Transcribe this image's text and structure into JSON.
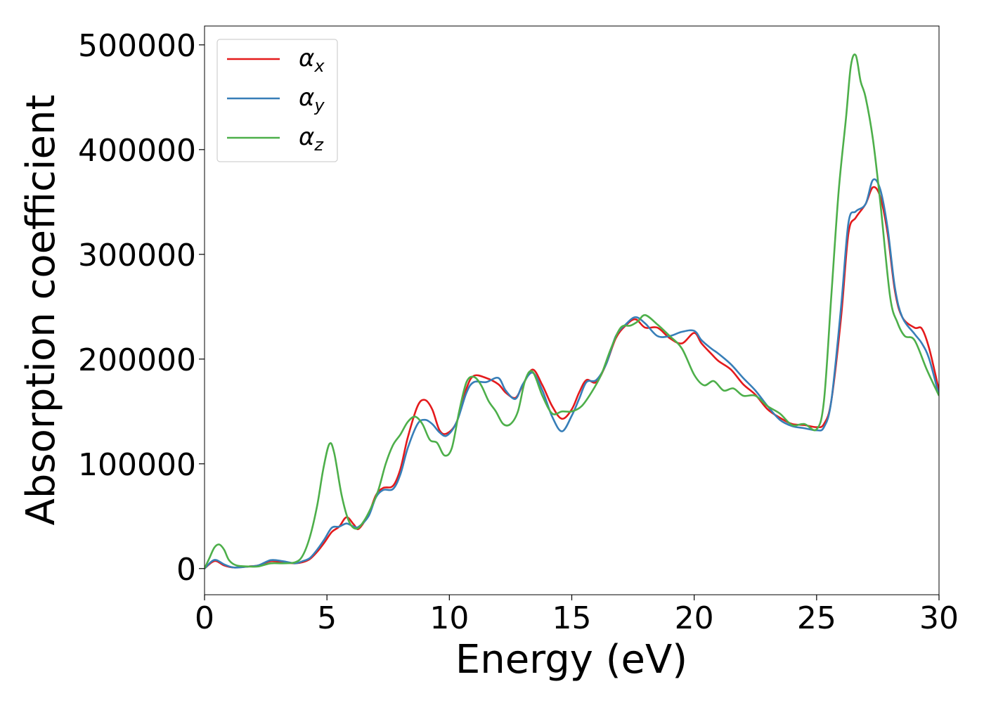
{
  "chart_data": {
    "type": "line",
    "title": "",
    "xlabel": "Energy (eV)",
    "ylabel": "Absorption coefficient",
    "xlim": [
      0,
      30
    ],
    "ylim": [
      -25000,
      518000
    ],
    "xticks": [
      0,
      5,
      10,
      15,
      20,
      25,
      30
    ],
    "yticks": [
      0,
      100000,
      200000,
      300000,
      400000,
      500000
    ],
    "grid": false,
    "legend_position": "upper-left",
    "series": [
      {
        "name": "αx",
        "symbol": "α",
        "subscript": "x",
        "color": "#e41a1c",
        "x": [
          0,
          0.3,
          0.5,
          0.8,
          1.2,
          1.8,
          2.2,
          2.7,
          3.2,
          3.7,
          4.0,
          4.3,
          4.6,
          4.9,
          5.2,
          5.5,
          5.8,
          6.1,
          6.3,
          6.7,
          7.0,
          7.3,
          7.7,
          8.0,
          8.3,
          8.7,
          9.0,
          9.3,
          9.6,
          9.9,
          10.3,
          10.7,
          11.0,
          11.5,
          12.0,
          12.3,
          12.7,
          13.0,
          13.4,
          13.8,
          14.2,
          14.6,
          15.0,
          15.3,
          15.6,
          16.0,
          16.4,
          16.8,
          17.2,
          17.6,
          18.0,
          18.5,
          19.0,
          19.5,
          20.0,
          20.3,
          20.7,
          21.0,
          21.5,
          22.0,
          22.5,
          23.0,
          23.5,
          24.0,
          24.5,
          25.0,
          25.3,
          25.6,
          26.0,
          26.3,
          26.6,
          27.0,
          27.3,
          27.6,
          27.9,
          28.2,
          28.5,
          29.0,
          29.3,
          29.6,
          30.0
        ],
        "y": [
          0,
          6000,
          7000,
          3000,
          1000,
          2000,
          3000,
          7000,
          6000,
          5000,
          6000,
          9000,
          16000,
          25000,
          35000,
          40000,
          49000,
          42000,
          38000,
          52000,
          70000,
          77000,
          79000,
          95000,
          125000,
          155000,
          161000,
          152000,
          132000,
          129000,
          140000,
          172000,
          184000,
          182000,
          176000,
          168000,
          163000,
          175000,
          190000,
          175000,
          155000,
          143000,
          152000,
          168000,
          180000,
          178000,
          195000,
          220000,
          232000,
          238000,
          230000,
          230000,
          220000,
          215000,
          225000,
          215000,
          205000,
          198000,
          190000,
          176000,
          166000,
          152000,
          144000,
          138000,
          137000,
          135000,
          138000,
          160000,
          240000,
          320000,
          335000,
          348000,
          364000,
          355000,
          320000,
          265000,
          240000,
          230000,
          229000,
          210000,
          170000
        ]
      },
      {
        "name": "αy",
        "symbol": "α",
        "subscript": "y",
        "color": "#377eb8",
        "x": [
          0,
          0.3,
          0.5,
          0.8,
          1.2,
          1.8,
          2.2,
          2.7,
          3.2,
          3.7,
          4.0,
          4.3,
          4.6,
          4.9,
          5.2,
          5.5,
          5.8,
          6.1,
          6.3,
          6.7,
          7.0,
          7.3,
          7.7,
          8.0,
          8.3,
          8.7,
          9.0,
          9.3,
          9.6,
          9.9,
          10.3,
          10.7,
          11.0,
          11.5,
          12.0,
          12.3,
          12.7,
          13.0,
          13.4,
          13.8,
          14.2,
          14.6,
          15.0,
          15.3,
          15.6,
          16.0,
          16.4,
          16.8,
          17.2,
          17.6,
          18.0,
          18.5,
          19.0,
          19.5,
          20.0,
          20.3,
          20.7,
          21.0,
          21.5,
          22.0,
          22.5,
          23.0,
          23.5,
          24.0,
          24.5,
          25.0,
          25.3,
          25.6,
          26.0,
          26.3,
          26.6,
          27.0,
          27.3,
          27.6,
          27.9,
          28.2,
          28.5,
          29.0,
          29.3,
          29.6,
          30.0
        ],
        "y": [
          0,
          7000,
          8000,
          4000,
          1000,
          2000,
          3000,
          8000,
          7000,
          5000,
          7000,
          10000,
          18000,
          28000,
          39000,
          40000,
          43000,
          40000,
          40000,
          50000,
          68000,
          75000,
          76000,
          90000,
          115000,
          138000,
          142000,
          138000,
          130000,
          127000,
          140000,
          168000,
          178000,
          178000,
          182000,
          170000,
          162000,
          176000,
          187000,
          170000,
          145000,
          131000,
          146000,
          162000,
          178000,
          180000,
          195000,
          222000,
          233000,
          240000,
          234000,
          222000,
          222000,
          226000,
          227000,
          218000,
          210000,
          205000,
          195000,
          182000,
          170000,
          155000,
          142000,
          136000,
          134000,
          132000,
          135000,
          160000,
          250000,
          330000,
          341000,
          348000,
          371000,
          362000,
          325000,
          268000,
          240000,
          224000,
          215000,
          200000,
          165000
        ]
      },
      {
        "name": "αz",
        "symbol": "α",
        "subscript": "z",
        "color": "#4daf4a",
        "x": [
          0,
          0.2,
          0.4,
          0.6,
          0.8,
          1.0,
          1.3,
          1.8,
          2.2,
          2.7,
          3.2,
          3.7,
          4.0,
          4.3,
          4.6,
          4.85,
          5.1,
          5.3,
          5.6,
          5.9,
          6.2,
          6.5,
          6.8,
          7.1,
          7.4,
          7.7,
          8.0,
          8.3,
          8.6,
          8.9,
          9.2,
          9.5,
          9.8,
          10.1,
          10.4,
          10.7,
          11.0,
          11.3,
          11.6,
          11.9,
          12.2,
          12.5,
          12.8,
          13.1,
          13.4,
          13.8,
          14.2,
          14.6,
          15.0,
          15.4,
          15.8,
          16.2,
          16.6,
          17.0,
          17.4,
          17.7,
          18.0,
          18.5,
          19.0,
          19.5,
          20.0,
          20.4,
          20.8,
          21.2,
          21.6,
          22.0,
          22.5,
          23.0,
          23.5,
          24.0,
          24.5,
          25.0,
          25.3,
          25.6,
          25.9,
          26.2,
          26.4,
          26.6,
          26.8,
          27.0,
          27.3,
          27.6,
          28.0,
          28.3,
          28.6,
          29.0,
          29.5,
          30.0
        ],
        "y": [
          0,
          10000,
          20000,
          23000,
          18000,
          8000,
          3000,
          2000,
          2000,
          5000,
          5000,
          6000,
          12000,
          30000,
          60000,
          95000,
          119000,
          110000,
          70000,
          45000,
          38000,
          45000,
          58000,
          75000,
          100000,
          118000,
          128000,
          140000,
          145000,
          138000,
          123000,
          120000,
          108000,
          115000,
          150000,
          178000,
          183000,
          175000,
          160000,
          150000,
          138000,
          138000,
          150000,
          180000,
          188000,
          165000,
          148000,
          150000,
          150000,
          155000,
          168000,
          185000,
          210000,
          230000,
          232000,
          236000,
          242000,
          233000,
          222000,
          210000,
          185000,
          175000,
          179000,
          170000,
          172000,
          165000,
          165000,
          155000,
          148000,
          137000,
          138000,
          133000,
          160000,
          260000,
          360000,
          430000,
          480000,
          490000,
          465000,
          450000,
          410000,
          350000,
          260000,
          235000,
          222000,
          218000,
          190000,
          165000
        ]
      }
    ]
  }
}
